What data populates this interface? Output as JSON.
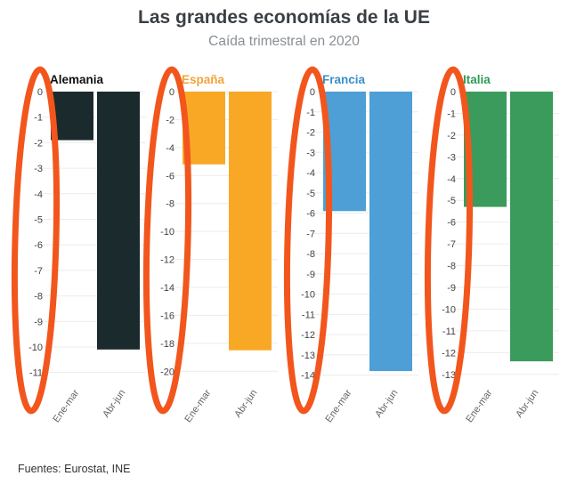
{
  "title": "Las grandes economías de la UE",
  "subtitle": "Caída trimestral en 2020",
  "source": "Fuentes: Eurostat, INE",
  "chart_data": [
    {
      "type": "bar",
      "title": "Alemania",
      "title_color": "#111111",
      "color": "#1b2a2c",
      "categories": [
        "Ene-mar",
        "Abr-jun"
      ],
      "values": [
        -1.9,
        -10.1
      ],
      "ylim": [
        -11.5,
        0
      ],
      "yticks": [
        0,
        -1,
        -2,
        -3,
        -4,
        -5,
        -6,
        -7,
        -8,
        -9,
        -10,
        -11
      ]
    },
    {
      "type": "bar",
      "title": "España",
      "title_color": "#f2a43a",
      "color": "#f9a825",
      "categories": [
        "Ene-mar",
        "Abr-jun"
      ],
      "values": [
        -5.2,
        -18.5
      ],
      "ylim": [
        -21,
        0
      ],
      "yticks": [
        0,
        -2,
        -4,
        -6,
        -8,
        -10,
        -12,
        -14,
        -16,
        -18,
        -20
      ]
    },
    {
      "type": "bar",
      "title": "Francia",
      "title_color": "#3a8ec9",
      "color": "#4e9fd6",
      "categories": [
        "Ene-mar",
        "Abr-jun"
      ],
      "values": [
        -5.9,
        -13.8
      ],
      "ylim": [
        -14.5,
        0
      ],
      "yticks": [
        0,
        -1,
        -2,
        -3,
        -4,
        -5,
        -6,
        -7,
        -8,
        -9,
        -10,
        -11,
        -12,
        -13,
        -14
      ]
    },
    {
      "type": "bar",
      "title": "Italia",
      "title_color": "#2e9a57",
      "color": "#3a9b5c",
      "categories": [
        "Ene-mar",
        "Abr-jun"
      ],
      "values": [
        -5.3,
        -12.4
      ],
      "ylim": [
        -13.5,
        0
      ],
      "yticks": [
        0,
        -1,
        -2,
        -3,
        -4,
        -5,
        -6,
        -7,
        -8,
        -9,
        -10,
        -11,
        -12,
        -13
      ]
    }
  ],
  "annotation_color": "#f2561d"
}
